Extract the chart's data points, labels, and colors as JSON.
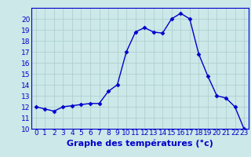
{
  "hours": [
    0,
    1,
    2,
    3,
    4,
    5,
    6,
    7,
    8,
    9,
    10,
    11,
    12,
    13,
    14,
    15,
    16,
    17,
    18,
    19,
    20,
    21,
    22,
    23
  ],
  "temperatures": [
    12.0,
    11.8,
    11.6,
    12.0,
    12.1,
    12.2,
    12.3,
    12.3,
    13.4,
    14.0,
    17.0,
    18.8,
    19.2,
    18.8,
    18.7,
    20.0,
    20.5,
    20.0,
    16.8,
    14.8,
    13.0,
    12.8,
    12.0,
    10.0
  ],
  "line_color": "#0000cc",
  "marker": "D",
  "marker_size": 2.5,
  "bg_color": "#cce8e8",
  "grid_color": "#aacccc",
  "xlabel": "Graphe des températures (°c)",
  "xlabel_color": "#0000cc",
  "xlabel_fontsize": 8,
  "tick_color": "#0000cc",
  "ylim": [
    10,
    21
  ],
  "xlim": [
    -0.5,
    23.5
  ],
  "yticks": [
    10,
    11,
    12,
    13,
    14,
    15,
    16,
    17,
    18,
    19,
    20
  ],
  "xticks": [
    0,
    1,
    2,
    3,
    4,
    5,
    6,
    7,
    8,
    9,
    10,
    11,
    12,
    13,
    14,
    15,
    16,
    17,
    18,
    19,
    20,
    21,
    22,
    23
  ],
  "tick_fontsize": 6.5,
  "axis_color": "#0000cc",
  "linewidth": 1.0
}
